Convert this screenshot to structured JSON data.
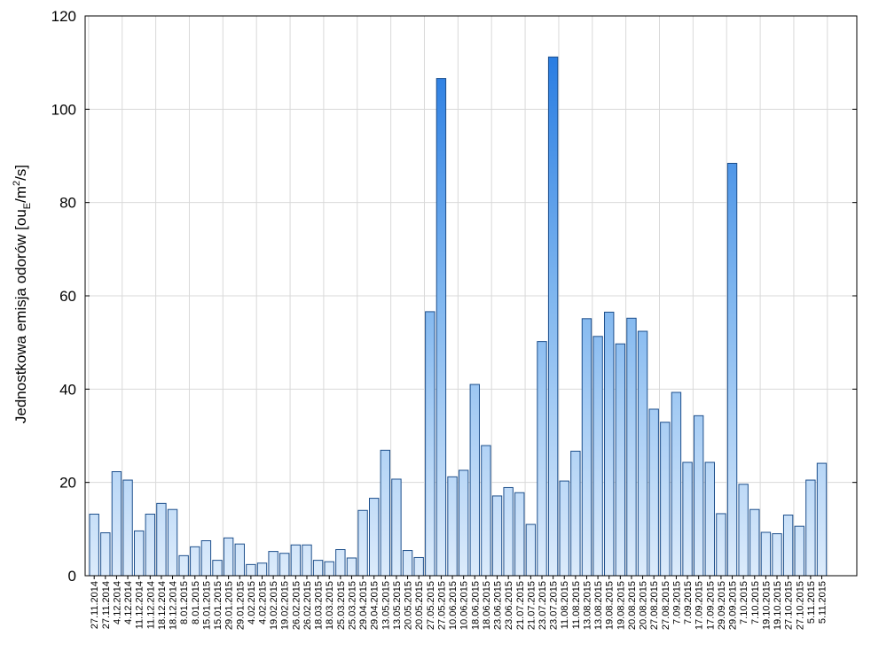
{
  "chart_data": {
    "type": "bar",
    "title": "",
    "xlabel": "",
    "ylabel_parts": {
      "pre": "Jednostkowa emisja odorów [ou",
      "sub": "E",
      "mid": "/m",
      "sup": "2",
      "post": "/s]"
    },
    "ylim": [
      0,
      120
    ],
    "yticks": [
      "0",
      "20",
      "40",
      "60",
      "80",
      "100",
      "120"
    ],
    "grid": true,
    "colors": {
      "bar_light": "#dcebfb",
      "bar_mid": "#7fb6ef",
      "bar_dark": "#1a73e0",
      "bar_stroke": "#1d4f8c",
      "grid": "#d9d9d9"
    },
    "categories": [
      "27.11.2014",
      "27.11.2014",
      "4.12.2014",
      "4.12.2014",
      "11.12.2014",
      "11.12.2014",
      "18.12.2014",
      "18.12.2014",
      "8.01.2015",
      "8.01.2015",
      "15.01.2015",
      "15.01.2015",
      "29.01.2015",
      "29.01.2015",
      "4.02.2015",
      "4.02.2015",
      "19.02.2015",
      "19.02.2015",
      "26.02.2015",
      "26.02.2015",
      "18.03.2015",
      "18.03.2015",
      "25.03.2015",
      "25.03.2015",
      "29.04.2015",
      "29.04.2015",
      "13.05.2015",
      "13.05.2015",
      "20.05.2015",
      "20.05.2015",
      "27.05.2015",
      "27.05.2015",
      "10.06.2015",
      "10.06.2015",
      "18.06.2015",
      "18.06.2015",
      "23.06.2015",
      "23.06.2015",
      "21.07.2015",
      "21.07.2015",
      "23.07.2015",
      "23.07.2015",
      "11.08.2015",
      "11.08.2015",
      "13.08.2015",
      "13.08.2015",
      "19.08.2015",
      "19.08.2015",
      "20.08.2015",
      "20.08.2015",
      "27.08.2015",
      "27.08.2015",
      "7.09.2015",
      "7.09.2015",
      "17.09.2015",
      "17.09.2015",
      "29.09.2015",
      "29.09.2015",
      "7.10.2015",
      "7.10.2015",
      "19.10.2015",
      "19.10.2015",
      "27.10.2015",
      "27.10.2015",
      "5.11.2015",
      "5.11.2015"
    ],
    "values": [
      13.2,
      9.2,
      22.3,
      20.5,
      9.6,
      13.2,
      15.5,
      14.2,
      4.3,
      6.2,
      7.5,
      3.3,
      8.1,
      6.8,
      2.4,
      2.7,
      5.2,
      4.8,
      6.6,
      6.6,
      3.3,
      3.0,
      5.6,
      3.8,
      14.0,
      16.6,
      26.9,
      20.7,
      5.4,
      3.9,
      56.6,
      106.6,
      21.2,
      22.6,
      41.0,
      27.9,
      17.1,
      18.9,
      17.8,
      11.0,
      50.2,
      111.2,
      20.3,
      26.7,
      55.1,
      51.3,
      56.5,
      49.7,
      55.2,
      52.4,
      35.7,
      32.9,
      39.3,
      24.3,
      34.3,
      24.3,
      13.3,
      88.4,
      19.6,
      14.2,
      9.3,
      9.0,
      13.0,
      10.6,
      20.5,
      24.1
    ]
  }
}
